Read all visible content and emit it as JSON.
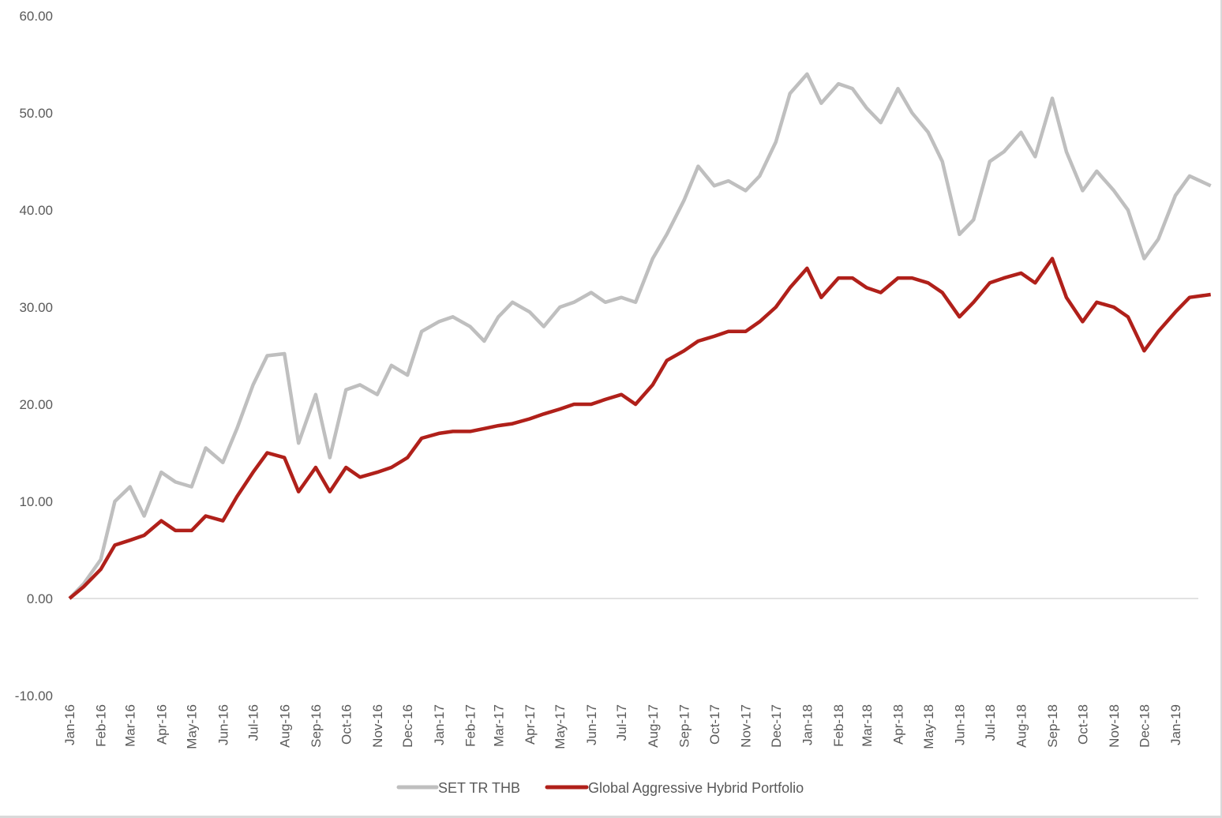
{
  "chart_data": {
    "type": "line",
    "title": "",
    "xlabel": "",
    "ylabel": "",
    "ylim": [
      -10,
      60
    ],
    "y_ticks": [
      "60.00",
      "50.00",
      "40.00",
      "30.00",
      "20.00",
      "10.00",
      "0.00",
      "-10.00"
    ],
    "x_ticks": [
      "Jan-16",
      "Feb-16",
      "Mar-16",
      "Apr-16",
      "May-16",
      "Jun-16",
      "Jul-16",
      "Aug-16",
      "Sep-16",
      "Oct-16",
      "Nov-16",
      "Dec-16",
      "Jan-17",
      "Feb-17",
      "Mar-17",
      "Apr-17",
      "May-17",
      "Jun-17",
      "Jul-17",
      "Aug-17",
      "Sep-17",
      "Oct-17",
      "Nov-17",
      "Dec-17",
      "Jan-18",
      "Feb-18",
      "Mar-18",
      "Apr-18",
      "May-18",
      "Jun-18",
      "Jul-18",
      "Aug-18",
      "Sep-18",
      "Oct-18",
      "Nov-18",
      "Dec-18",
      "Jan-19"
    ],
    "grid": false,
    "legend_position": "bottom",
    "x_start": "2016-01-01",
    "x_end": "2019-02-05",
    "series": [
      {
        "name": "SET TR THB",
        "color": "#bfbfbf",
        "values": [
          0,
          1.5,
          4,
          10,
          11.5,
          8.5,
          13,
          12,
          11.5,
          15.5,
          14,
          17.5,
          22,
          25,
          25.2,
          16,
          21,
          14.5,
          21.5,
          22,
          21,
          24,
          23,
          27.5,
          28.5,
          29,
          28,
          26.5,
          29,
          30.5,
          29.5,
          28,
          30,
          30.5,
          31.5,
          30.5,
          31,
          30.5,
          35,
          37.5,
          41,
          44.5,
          42.5,
          43,
          42,
          43.5,
          47,
          52,
          54,
          51,
          53,
          52.5,
          50.5,
          49,
          52.5,
          50,
          48,
          45,
          37.5,
          39,
          45,
          46,
          48,
          45.5,
          51.5,
          46,
          42,
          44,
          42,
          40,
          35,
          37,
          41.5,
          43.5,
          42.5
        ]
      },
      {
        "name": "Global Aggressive Hybrid Portfolio",
        "color": "#b0201a",
        "values": [
          0,
          1.2,
          3,
          5.5,
          6,
          6.5,
          8,
          7,
          7,
          8.5,
          8,
          10.5,
          13,
          15,
          14.5,
          11,
          13.5,
          11,
          13.5,
          12.5,
          13,
          13.5,
          14.5,
          16.5,
          17,
          17.2,
          17.2,
          17.5,
          17.8,
          18,
          18.5,
          19,
          19.5,
          20,
          20,
          20.5,
          21,
          20,
          22,
          24.5,
          25.5,
          26.5,
          27,
          27.5,
          27.5,
          28.5,
          30,
          32,
          34,
          31,
          33,
          33,
          32,
          31.5,
          33,
          33,
          32.5,
          31.5,
          29,
          30.5,
          32.5,
          33,
          33.5,
          32.5,
          35,
          31,
          28.5,
          30.5,
          30,
          29,
          25.5,
          27.5,
          29.5,
          31,
          31.3
        ]
      }
    ]
  }
}
